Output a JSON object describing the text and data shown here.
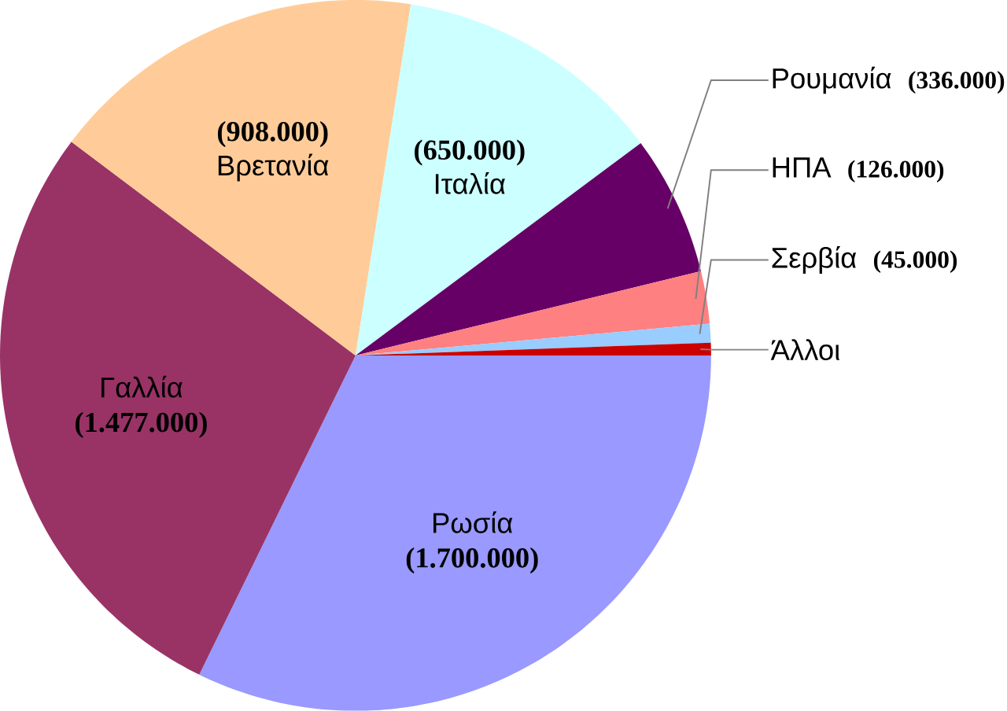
{
  "chart_data": {
    "type": "pie",
    "categories": [
      "Ρωσία",
      "Γαλλία",
      "Βρετανία",
      "Ιταλία",
      "Ρουμανία",
      "ΗΠΑ",
      "Σερβία",
      "Άλλοι"
    ],
    "values": [
      1700000,
      1477000,
      908000,
      650000,
      336000,
      126000,
      45000,
      30000
    ],
    "value_labels": [
      "(1.700.000)",
      "(1.477.000)",
      "(908.000)",
      "(650.000)",
      "(336.000)",
      "(126.000)",
      "(45.000)",
      null
    ],
    "colors": [
      "#9999ff",
      "#993366",
      "#ffcc99",
      "#ccffff",
      "#660066",
      "#ff8080",
      "#99ccff",
      "#cc0000"
    ]
  }
}
